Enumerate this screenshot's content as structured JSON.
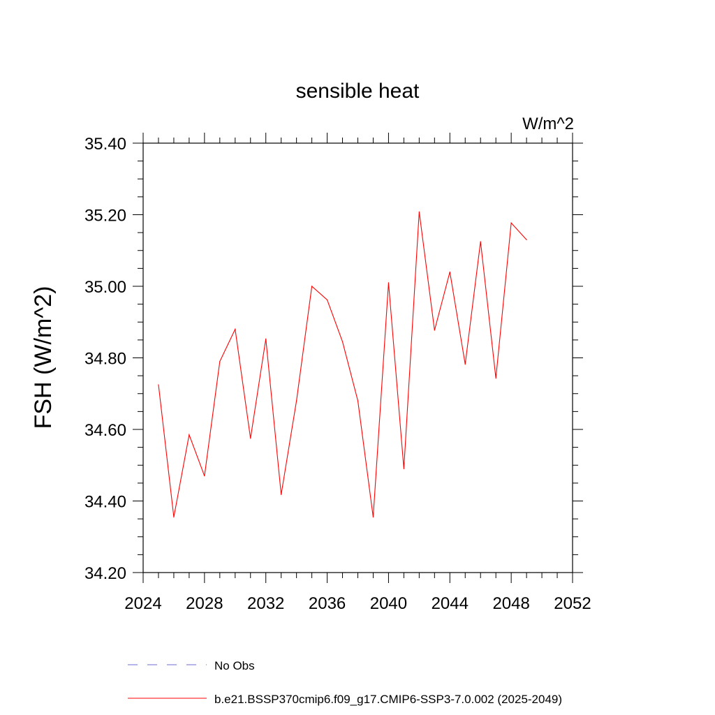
{
  "chart_data": {
    "type": "line",
    "title": "sensible heat",
    "units_label": "W/m^2",
    "ylabel": "FSH  (W/m^2)",
    "xlabel": "",
    "xlim": [
      2024,
      2052
    ],
    "ylim": [
      34.2,
      35.4
    ],
    "x_ticks": [
      "2024",
      "2028",
      "2032",
      "2036",
      "2040",
      "2044",
      "2048",
      "2052"
    ],
    "y_ticks": [
      "34.20",
      "34.40",
      "34.60",
      "34.80",
      "35.00",
      "35.20",
      "35.40"
    ],
    "grid": false,
    "legend_placement": "bottom",
    "series": [
      {
        "name": "b.e21.BSSP370cmip6.f09_g17.CMIP6-SSP3-7.0.002 (2025-2049)",
        "color": "#ff0000",
        "x": [
          2025,
          2026,
          2027,
          2028,
          2029,
          2030,
          2031,
          2032,
          2033,
          2034,
          2035,
          2036,
          2037,
          2038,
          2039,
          2040,
          2041,
          2042,
          2043,
          2044,
          2045,
          2046,
          2047,
          2048,
          2049
        ],
        "y": [
          34.725,
          34.355,
          34.585,
          34.47,
          34.79,
          34.88,
          34.575,
          34.853,
          34.418,
          34.68,
          35.0,
          34.962,
          34.845,
          34.68,
          34.355,
          35.01,
          34.49,
          35.208,
          34.877,
          35.04,
          34.782,
          35.125,
          34.743,
          35.177,
          35.13
        ]
      }
    ],
    "legend": [
      {
        "label": "No Obs",
        "color": "#6b6bd6",
        "style": "dashed"
      },
      {
        "label": "b.e21.BSSP370cmip6.f09_g17.CMIP6-SSP3-7.0.002 (2025-2049)",
        "color": "#ff0000",
        "style": "solid"
      }
    ]
  }
}
